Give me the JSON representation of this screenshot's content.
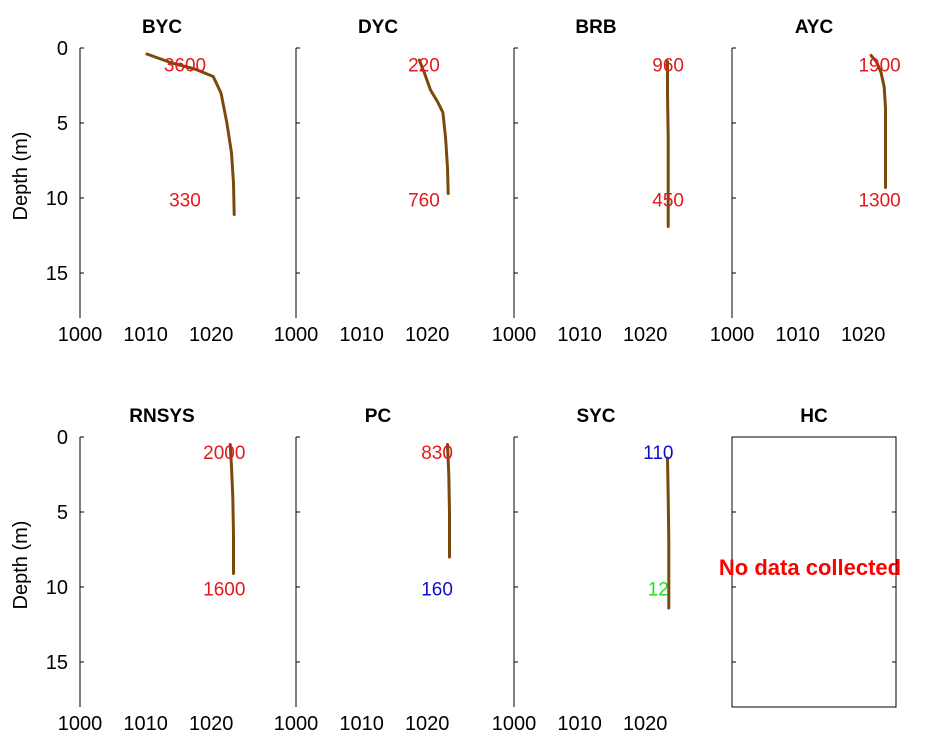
{
  "figure": {
    "ylabel": "Depth (m)",
    "x_ticks": [
      "1000",
      "1010",
      "1020"
    ],
    "y_ticks": [
      "0",
      "5",
      "10",
      "15"
    ]
  },
  "colors": {
    "profile": "#7a4a0c",
    "label_red": "#e31a1c",
    "label_blue": "#1010c8",
    "label_green": "#22dd22",
    "axis": "#000000",
    "note": "#ff0000"
  },
  "chart_data": [
    {
      "type": "line",
      "title": "BYC",
      "xlim": [
        1000,
        1025
      ],
      "ylim": [
        18,
        0
      ],
      "y_reversed": true,
      "grid": false,
      "series": [
        {
          "x": [
            1010.2,
            1014,
            1017.5,
            1020.3,
            1021.5,
            1022.4,
            1023.1,
            1023.4,
            1023.5
          ],
          "y": [
            0.4,
            1.0,
            1.4,
            1.9,
            3.0,
            5.0,
            7.0,
            9.0,
            11.1
          ]
        }
      ],
      "annotations": [
        {
          "text": "3600",
          "x": 1016,
          "y": 1.1,
          "color": "red"
        },
        {
          "text": "330",
          "x": 1016,
          "y": 10.1,
          "color": "red"
        }
      ]
    },
    {
      "type": "line",
      "title": "DYC",
      "xlim": [
        1000,
        1025
      ],
      "ylim": [
        18,
        0
      ],
      "y_reversed": true,
      "grid": false,
      "series": [
        {
          "x": [
            1018.8,
            1019.6,
            1020.5,
            1021.6,
            1022.4,
            1022.8,
            1023.1,
            1023.2
          ],
          "y": [
            0.8,
            1.7,
            2.8,
            3.6,
            4.3,
            6.0,
            8.0,
            9.7
          ]
        }
      ],
      "annotations": [
        {
          "text": "220",
          "x": 1019.5,
          "y": 1.1,
          "color": "red"
        },
        {
          "text": "760",
          "x": 1019.5,
          "y": 10.1,
          "color": "red"
        }
      ]
    },
    {
      "type": "line",
      "title": "BRB",
      "xlim": [
        1000,
        1025
      ],
      "ylim": [
        18,
        0
      ],
      "y_reversed": true,
      "grid": false,
      "series": [
        {
          "x": [
            1023.4,
            1023.4,
            1023.5,
            1023.5,
            1023.5
          ],
          "y": [
            0.9,
            3.0,
            6.0,
            9.0,
            11.9
          ]
        }
      ],
      "annotations": [
        {
          "text": "960",
          "x": 1023.5,
          "y": 1.1,
          "color": "red"
        },
        {
          "text": "450",
          "x": 1023.5,
          "y": 10.1,
          "color": "red"
        }
      ]
    },
    {
      "type": "line",
      "title": "AYC",
      "xlim": [
        1000,
        1025
      ],
      "ylim": [
        18,
        0
      ],
      "y_reversed": true,
      "grid": false,
      "series": [
        {
          "x": [
            1021.2,
            1022.0,
            1022.7,
            1023.2,
            1023.4,
            1023.4,
            1023.4
          ],
          "y": [
            0.5,
            0.9,
            1.6,
            2.6,
            4.0,
            6.5,
            9.3
          ]
        }
      ],
      "annotations": [
        {
          "text": "1900",
          "x": 1022.5,
          "y": 1.1,
          "color": "red"
        },
        {
          "text": "1300",
          "x": 1022.5,
          "y": 10.1,
          "color": "red"
        }
      ]
    },
    {
      "type": "line",
      "title": "RNSYS",
      "xlim": [
        1000,
        1025
      ],
      "ylim": [
        18,
        0
      ],
      "y_reversed": true,
      "grid": false,
      "series": [
        {
          "x": [
            1022.9,
            1023.1,
            1023.3,
            1023.4,
            1023.4
          ],
          "y": [
            0.5,
            2.0,
            4.0,
            6.5,
            9.1
          ]
        }
      ],
      "annotations": [
        {
          "text": "2000",
          "x": 1022,
          "y": 1.0,
          "color": "red"
        },
        {
          "text": "1600",
          "x": 1022,
          "y": 10.1,
          "color": "red"
        }
      ]
    },
    {
      "type": "line",
      "title": "PC",
      "xlim": [
        1000,
        1025
      ],
      "ylim": [
        18,
        0
      ],
      "y_reversed": true,
      "grid": false,
      "series": [
        {
          "x": [
            1023.1,
            1023.3,
            1023.4,
            1023.4
          ],
          "y": [
            0.5,
            2.5,
            5.0,
            8.0
          ]
        }
      ],
      "annotations": [
        {
          "text": "830",
          "x": 1021.5,
          "y": 1.0,
          "color": "red"
        },
        {
          "text": "160",
          "x": 1021.5,
          "y": 10.1,
          "color": "blue"
        }
      ]
    },
    {
      "type": "line",
      "title": "SYC",
      "xlim": [
        1000,
        1025
      ],
      "ylim": [
        18,
        0
      ],
      "y_reversed": true,
      "grid": false,
      "series": [
        {
          "x": [
            1023.4,
            1023.5,
            1023.6,
            1023.6,
            1023.6
          ],
          "y": [
            1.4,
            4.0,
            7.0,
            9.5,
            11.4
          ]
        }
      ],
      "annotations": [
        {
          "text": "110",
          "x": 1022,
          "y": 1.0,
          "color": "blue"
        },
        {
          "text": "12",
          "x": 1022,
          "y": 10.1,
          "color": "green"
        }
      ]
    },
    {
      "type": "line",
      "title": "HC",
      "xlim": [
        1000,
        1025
      ],
      "ylim": [
        18,
        0
      ],
      "y_reversed": true,
      "grid": false,
      "series": [],
      "annotations": [],
      "message": "No data collected"
    }
  ]
}
